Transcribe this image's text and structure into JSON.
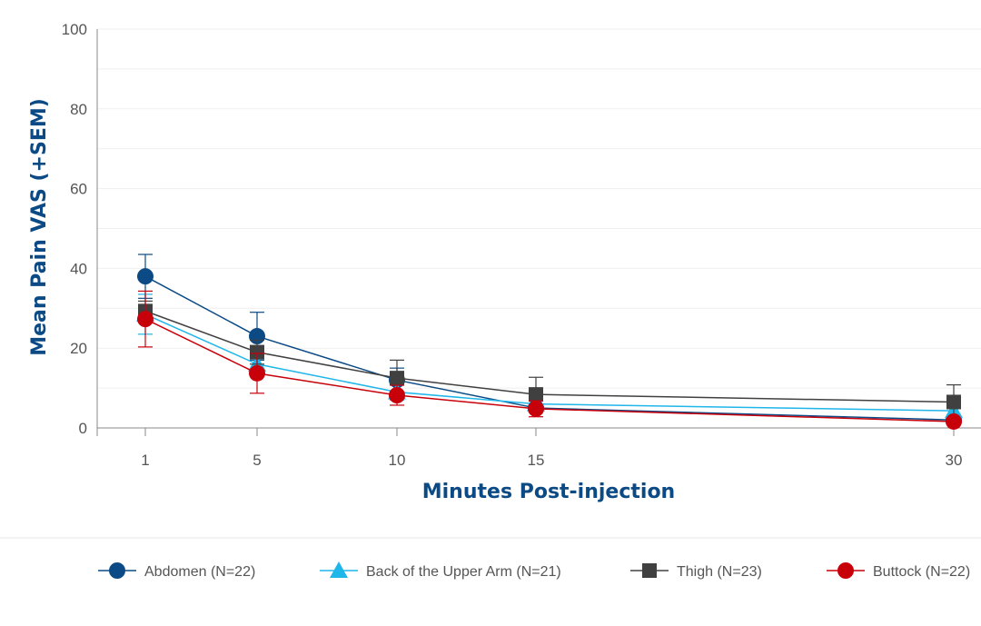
{
  "chart_data": {
    "type": "line",
    "title": "",
    "xlabel": "Minutes Post-injection",
    "ylabel": "Mean Pain VAS (+SEM)",
    "ylim": [
      0,
      100
    ],
    "yticks": [
      "0",
      "20",
      "40",
      "60",
      "80",
      "100"
    ],
    "x": [
      1,
      5,
      10,
      15,
      30
    ],
    "xticks": [
      "1",
      "5",
      "10",
      "15",
      "30"
    ],
    "legend_position": "bottom",
    "series": [
      {
        "name": "Abdomen (N=22)",
        "color": "#0b4a85",
        "marker": "circle",
        "values": [
          38,
          23,
          12,
          5,
          2
        ],
        "sem": [
          5.5,
          6,
          3,
          1,
          1
        ]
      },
      {
        "name": "Back of the Upper Arm (N=21)",
        "color": "#1fb6ea",
        "marker": "triangle",
        "values": [
          28.5,
          16,
          9,
          6,
          4.3
        ],
        "sem": [
          5,
          3,
          2,
          1,
          1
        ]
      },
      {
        "name": "Thigh (N=23)",
        "color": "#404040",
        "marker": "square",
        "values": [
          29.3,
          19,
          12.5,
          8.4,
          6.5
        ],
        "sem": [
          2.5,
          3,
          4.5,
          4.3,
          4.3
        ]
      },
      {
        "name": "Buttock (N=22)",
        "color": "#c8000a",
        "marker": "circle",
        "values": [
          27.3,
          13.7,
          8.2,
          4.8,
          1.6
        ],
        "sem": [
          7,
          5,
          2.5,
          2,
          0.5
        ]
      }
    ]
  }
}
